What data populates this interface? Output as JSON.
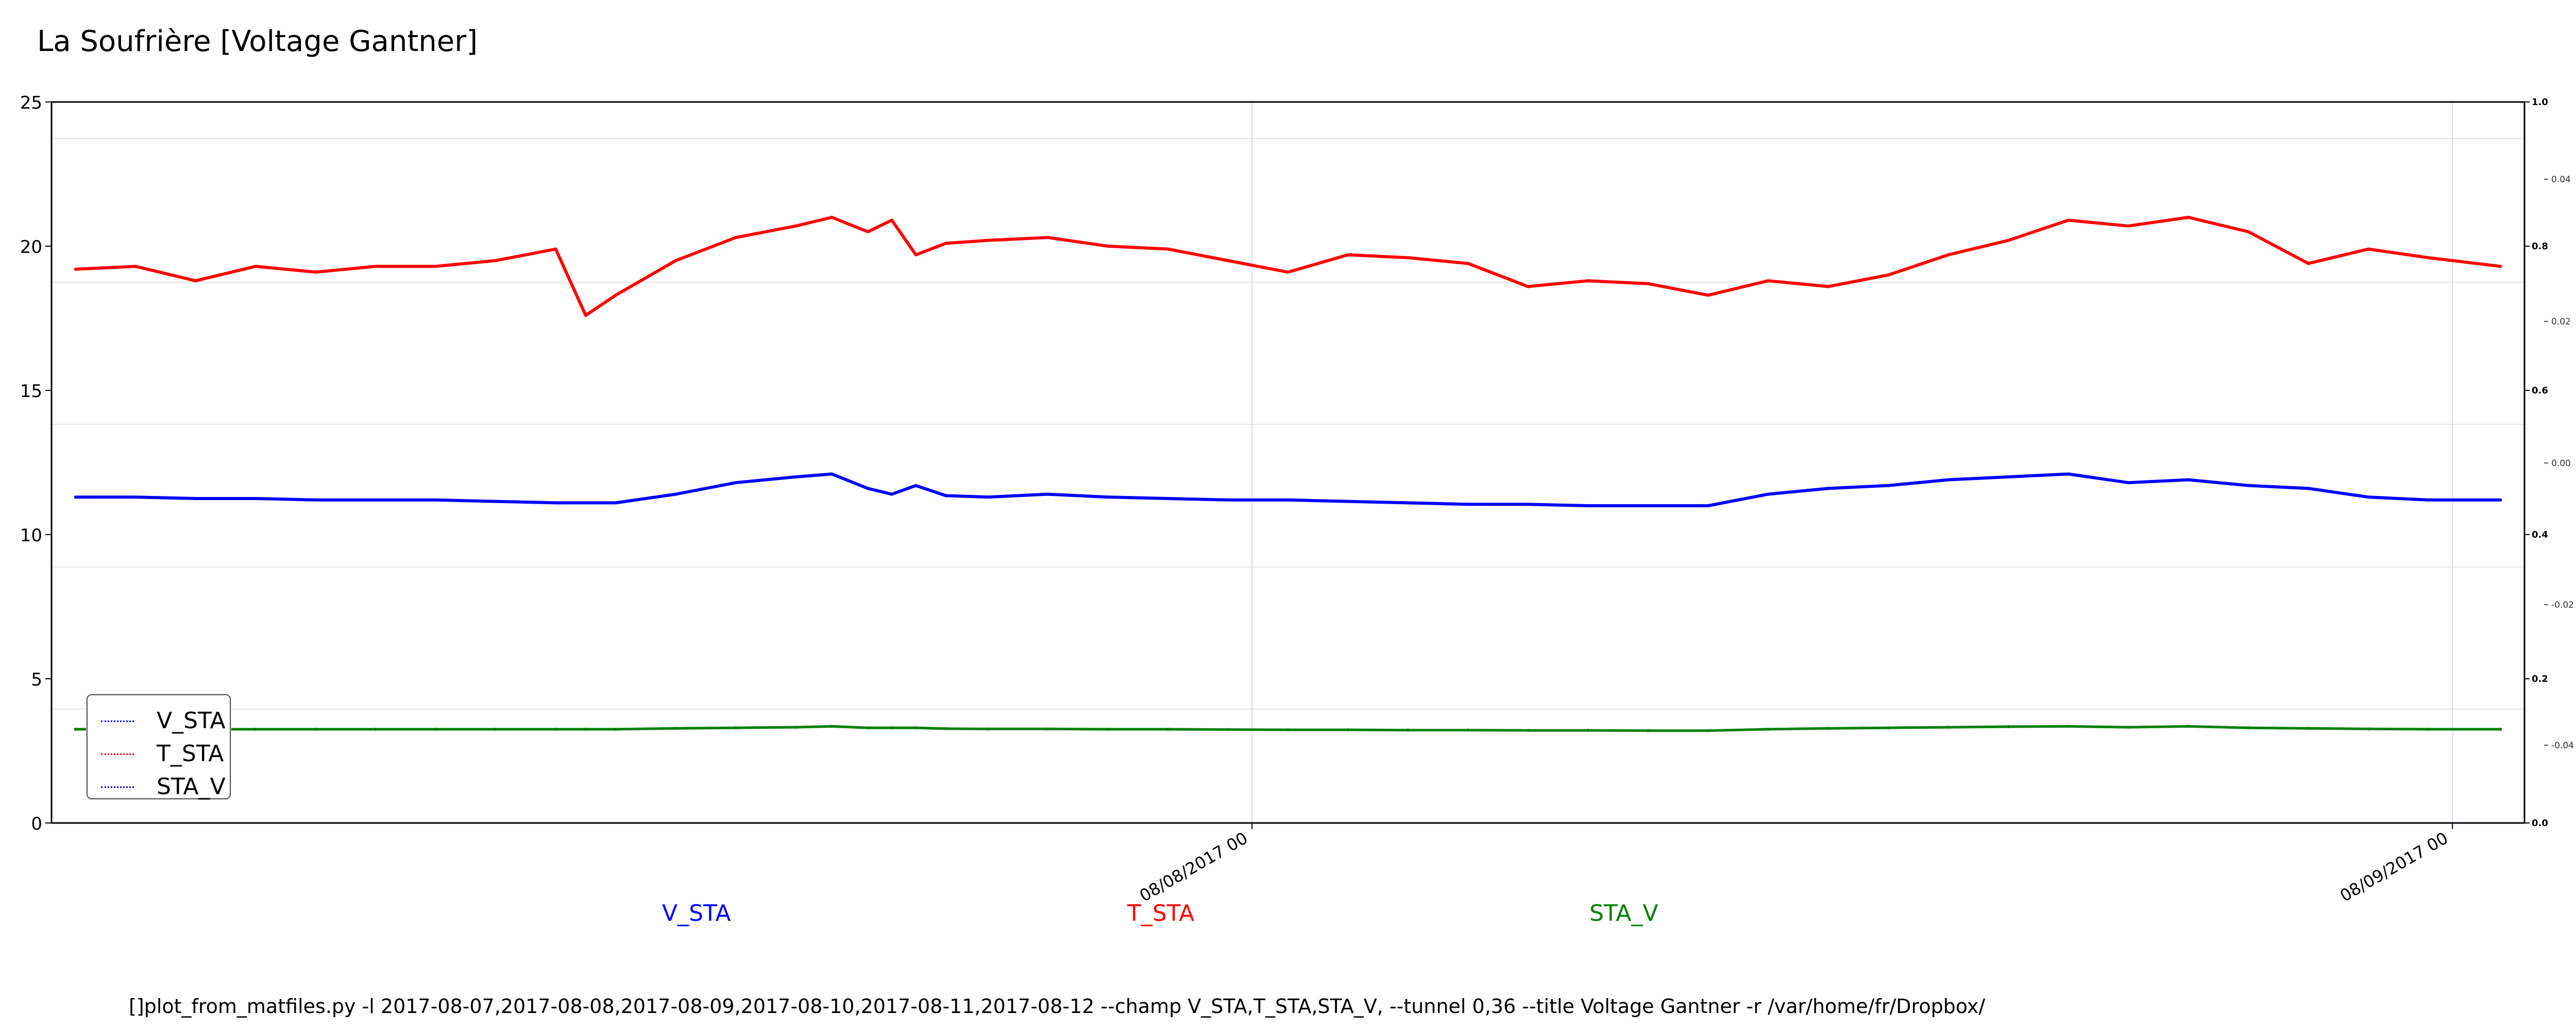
{
  "title": "La Soufrière [Voltage Gantner]",
  "legend": [
    {
      "label": "V_STA",
      "color": "#0000ff"
    },
    {
      "label": "T_STA",
      "color": "#ff0000"
    },
    {
      "label": "STA_V",
      "color": "#008000"
    }
  ],
  "bottom_labels": [
    {
      "label": "V_STA",
      "color": "#0000ff"
    },
    {
      "label": "T_STA",
      "color": "#ff0000"
    },
    {
      "label": "STA_V",
      "color": "#008000"
    }
  ],
  "command": "[]plot_from_matfiles.py -l 2017-08-07,2017-08-08,2017-08-09,2017-08-10,2017-08-11,2017-08-12 --champ V_STA,T_STA,STA_V, --tunnel 0,36 --title Voltage Gantner -r /var/home/fr/Dropbox/",
  "chart_data": {
    "type": "line",
    "title": "La Soufrière [Voltage Gantner]",
    "xlabel": "",
    "ylabel": "",
    "x_ticks": [
      "08/08/2017 00",
      "08/09/2017 00"
    ],
    "x_range_days": [
      0,
      2.06
    ],
    "ylim": [
      0,
      25
    ],
    "yticks": [
      "0",
      "5",
      "10",
      "15",
      "20",
      "25"
    ],
    "right_axis_1": {
      "ylim": [
        0.0,
        1.0
      ],
      "ticks": [
        "0.0",
        "0.2",
        "0.4",
        "0.6",
        "0.8",
        "1.0"
      ]
    },
    "right_axis_2": {
      "ticks": [
        "-0.04",
        "-0.02",
        "0.00",
        "0.02",
        "0.04"
      ]
    },
    "grid": true,
    "legend_position": "lower-left",
    "x": [
      0.02,
      0.07,
      0.12,
      0.17,
      0.22,
      0.27,
      0.32,
      0.37,
      0.42,
      0.445,
      0.47,
      0.52,
      0.57,
      0.62,
      0.65,
      0.68,
      0.7,
      0.72,
      0.745,
      0.78,
      0.83,
      0.88,
      0.93,
      0.98,
      1.03,
      1.08,
      1.13,
      1.18,
      1.23,
      1.28,
      1.33,
      1.38,
      1.43,
      1.48,
      1.53,
      1.58,
      1.63,
      1.68,
      1.73,
      1.78,
      1.83,
      1.88,
      1.93,
      1.98,
      2.04
    ],
    "series": [
      {
        "name": "V_STA",
        "color": "#0000ff",
        "values": [
          11.3,
          11.3,
          11.25,
          11.25,
          11.2,
          11.2,
          11.2,
          11.15,
          11.1,
          11.1,
          11.1,
          11.4,
          11.8,
          12.0,
          12.1,
          11.6,
          11.4,
          11.7,
          11.35,
          11.3,
          11.4,
          11.3,
          11.25,
          11.2,
          11.2,
          11.15,
          11.1,
          11.05,
          11.05,
          11.0,
          11.0,
          11.0,
          11.4,
          11.6,
          11.7,
          11.9,
          12.0,
          12.1,
          11.8,
          11.9,
          11.7,
          11.6,
          11.3,
          11.2,
          11.2
        ]
      },
      {
        "name": "T_STA",
        "color": "#ff0000",
        "values": [
          19.2,
          19.3,
          18.8,
          19.3,
          19.1,
          19.3,
          19.3,
          19.5,
          19.9,
          17.6,
          18.3,
          19.5,
          20.3,
          20.7,
          21.0,
          20.5,
          20.9,
          19.7,
          20.1,
          20.2,
          20.3,
          20.0,
          19.9,
          19.5,
          19.1,
          19.7,
          19.6,
          19.4,
          18.6,
          18.8,
          18.7,
          18.3,
          18.8,
          18.6,
          19.0,
          19.7,
          20.2,
          20.9,
          20.7,
          21.0,
          20.5,
          19.4,
          19.9,
          19.6,
          19.3
        ]
      },
      {
        "name": "STA_V",
        "color": "#008000",
        "values": [
          3.25,
          3.25,
          3.25,
          3.25,
          3.25,
          3.25,
          3.25,
          3.25,
          3.25,
          3.25,
          3.25,
          3.28,
          3.3,
          3.32,
          3.35,
          3.3,
          3.3,
          3.3,
          3.27,
          3.26,
          3.26,
          3.25,
          3.25,
          3.24,
          3.23,
          3.23,
          3.22,
          3.22,
          3.21,
          3.21,
          3.2,
          3.2,
          3.25,
          3.28,
          3.3,
          3.32,
          3.34,
          3.35,
          3.32,
          3.35,
          3.3,
          3.28,
          3.26,
          3.25,
          3.25
        ]
      }
    ]
  }
}
